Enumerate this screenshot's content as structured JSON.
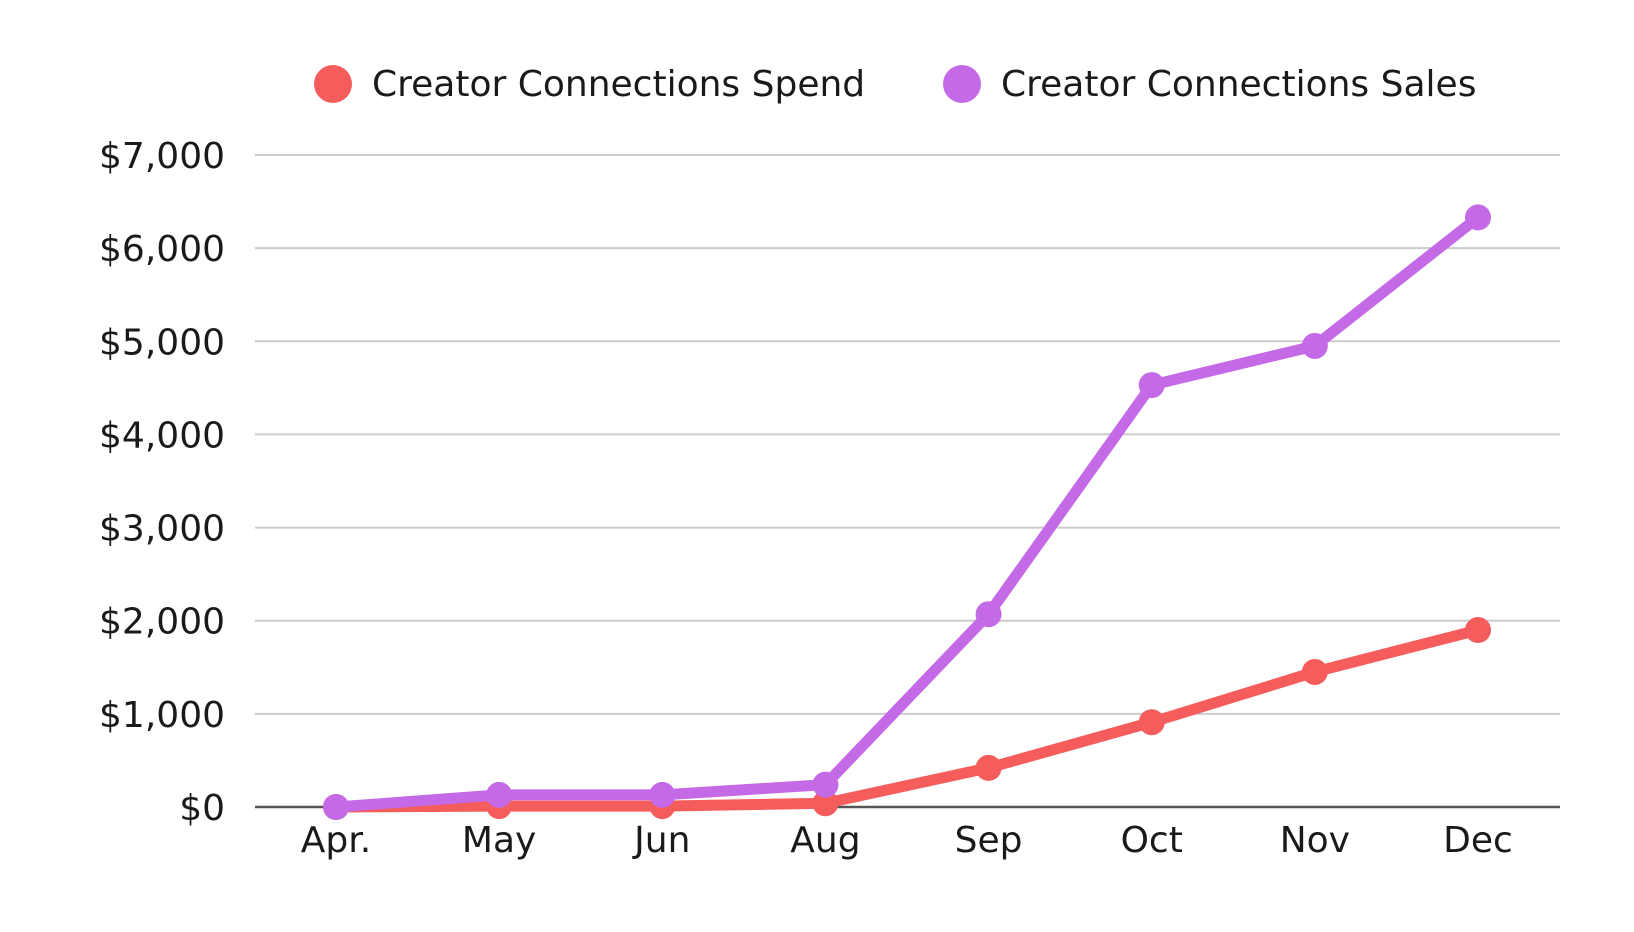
{
  "chart_data": {
    "type": "line",
    "title": "",
    "xlabel": "",
    "ylabel": "",
    "categories": [
      "Apr.",
      "May",
      "Jun",
      "Aug",
      "Sep",
      "Oct",
      "Nov",
      "Dec"
    ],
    "y_ticks": [
      "$0",
      "$1,000",
      "$2,000",
      "$3,000",
      "$4,000",
      "$5,000",
      "$6,000",
      "$7,000"
    ],
    "ylim": [
      0,
      7000
    ],
    "grid": true,
    "legend_position": "top",
    "series": [
      {
        "name": "Creator Connections Spend",
        "color": "#f55c5c",
        "values": [
          0,
          10,
          10,
          40,
          420,
          910,
          1450,
          1900
        ]
      },
      {
        "name": "Creator Connections Sales",
        "color": "#c56ae6",
        "values": [
          0,
          130,
          130,
          240,
          2070,
          4530,
          4950,
          6330
        ]
      }
    ]
  }
}
